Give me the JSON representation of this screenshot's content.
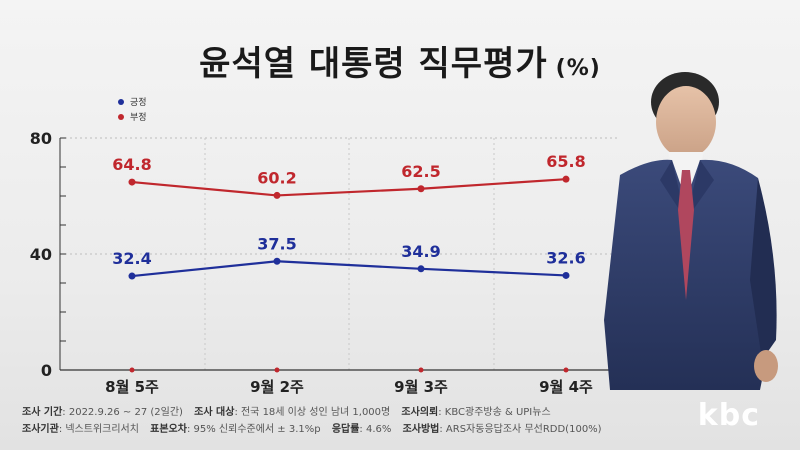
{
  "title": "윤석열 대통령 직무평가",
  "unit": "(%)",
  "legend": [
    {
      "label": "긍정",
      "color": "#1f2f9a"
    },
    {
      "label": "부정",
      "color": "#c0272d"
    }
  ],
  "chart_data": {
    "type": "line",
    "categories": [
      "8월 5주",
      "9월 2주",
      "9월 3주",
      "9월 4주"
    ],
    "series": [
      {
        "name": "긍정",
        "values": [
          32.4,
          37.5,
          34.9,
          32.6
        ],
        "color": "#1f2f9a"
      },
      {
        "name": "부정",
        "values": [
          64.8,
          60.2,
          62.5,
          65.8
        ],
        "color": "#c0272d"
      }
    ],
    "ylim": [
      0,
      80
    ],
    "yticks": [
      0,
      40,
      80
    ],
    "grid": true
  },
  "footer": {
    "line1": [
      {
        "k": "조사 기간",
        "v": ": 2022.9.26 ~ 27 (2일간)"
      },
      {
        "k": "조사 대상",
        "v": ": 전국 18세 이상 성인 남녀 1,000명"
      },
      {
        "k": "조사의뢰",
        "v": ": KBC광주방송 & UPI뉴스"
      }
    ],
    "line2": [
      {
        "k": "조사기관",
        "v": ": 넥스트위크리서치"
      },
      {
        "k": "표본오차",
        "v": ": 95% 신뢰수준에서 ± 3.1%p"
      },
      {
        "k": "응답률",
        "v": ": 4.6%"
      },
      {
        "k": "조사방법",
        "v": ": ARS자동응답조사 무선RDD(100%)"
      }
    ]
  },
  "logo": "kbc",
  "photo_icon": "person-in-suit-photo"
}
